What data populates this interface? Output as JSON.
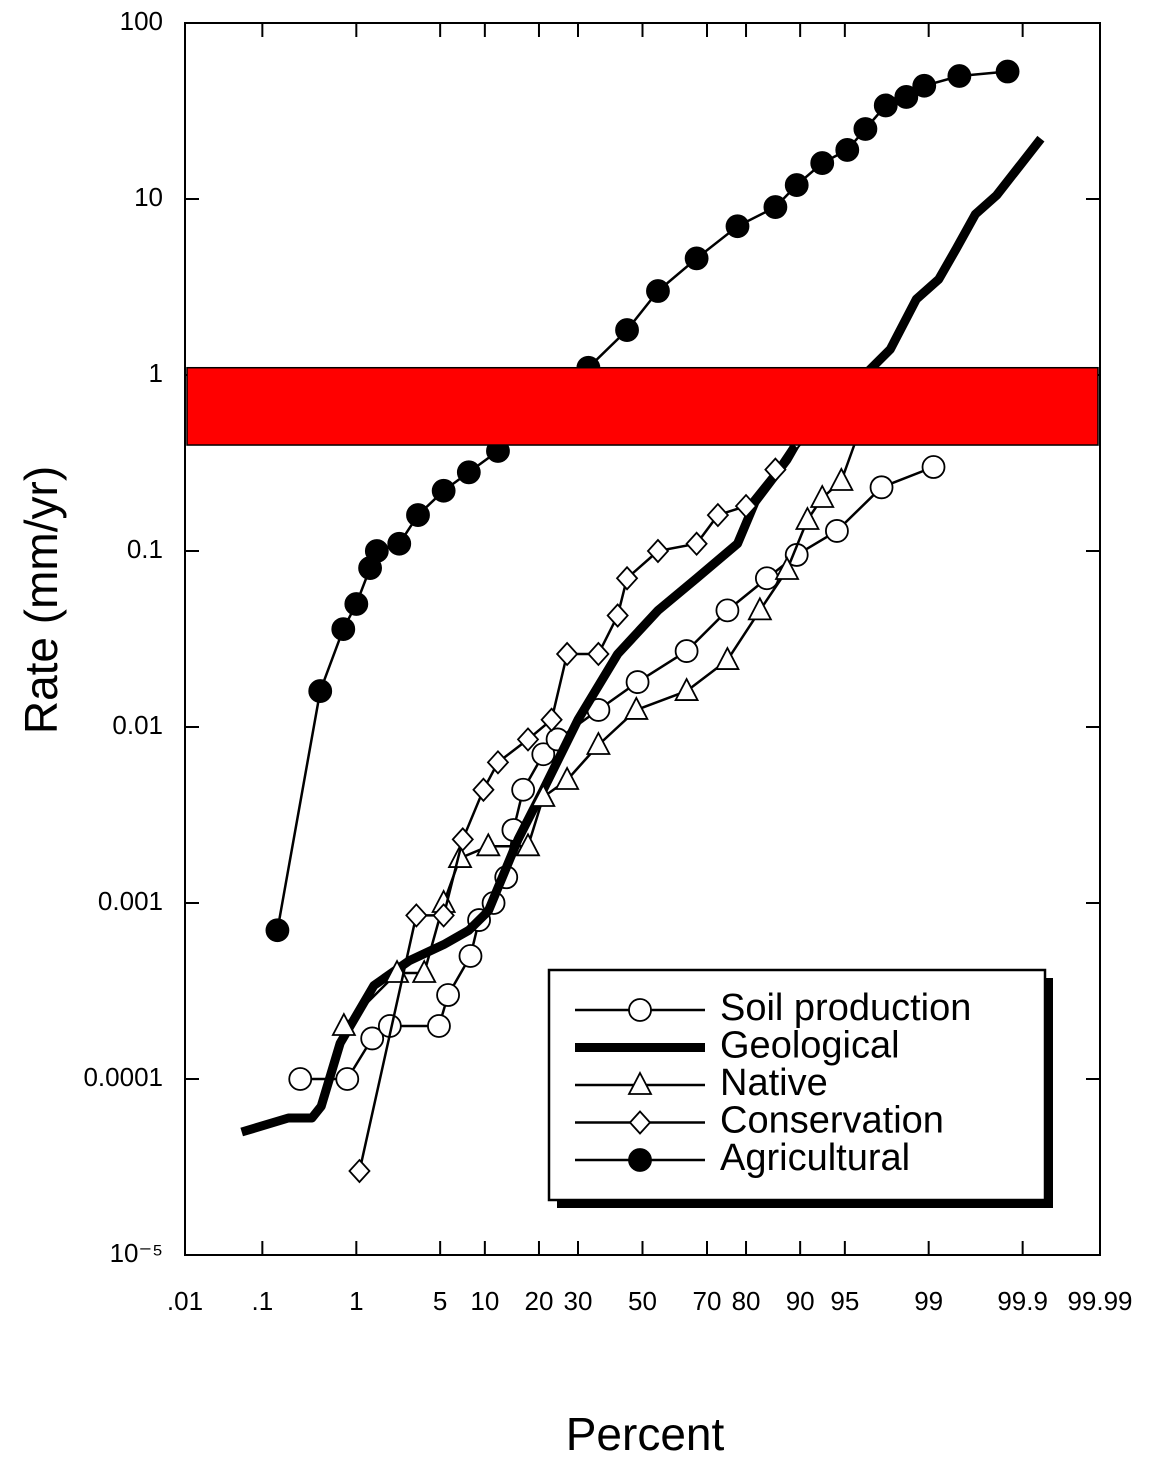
{
  "chart_data": {
    "type": "probability-line",
    "x_label": "Percent",
    "y_label": "Rate (mm/yr)",
    "y_log": true,
    "x_scale": "probability",
    "grid": false,
    "legend": "lower right",
    "xlim": [
      0.01,
      99.99
    ],
    "ylim": [
      1e-05,
      100
    ],
    "xticks": [
      {
        "value": 0.01,
        "label": ".01"
      },
      {
        "value": 0.1,
        "label": ".1"
      },
      1,
      5,
      10,
      20,
      30,
      50,
      70,
      80,
      90,
      95,
      99,
      99.9,
      99.99
    ],
    "yticks": [
      {
        "value": 1e-05,
        "label": "10⁻⁵"
      },
      0.0001,
      0.001,
      0.01,
      0.1,
      1,
      10,
      100
    ],
    "band": {
      "ymin": 0.4,
      "ymax": 1.1,
      "color": "#ff0000"
    },
    "series": [
      {
        "name": "Soil production",
        "color": "#000000",
        "marker": "circle-open",
        "line_width": 2.5,
        "x": [
          0.27,
          0.82,
          1.4,
          2.0,
          4.9,
          5.7,
          8.1,
          9.2,
          11.3,
          13.4,
          14.7,
          16.6,
          21,
          24.5,
          36,
          48.4,
          64,
          75.5,
          84.4,
          89.5,
          94.3,
          97.4,
          99.1
        ],
        "values": [
          0.0001,
          0.0001,
          0.00017,
          0.0002,
          0.0002,
          0.0003,
          0.0005,
          0.0008,
          0.001,
          0.0014,
          0.0026,
          0.0044,
          0.007,
          0.0085,
          0.0125,
          0.018,
          0.027,
          0.046,
          0.07,
          0.095,
          0.13,
          0.23,
          0.3
        ]
      },
      {
        "name": "Geological",
        "color": "#000000",
        "marker": "none",
        "line_width": 9,
        "x": [
          0.056,
          0.2,
          0.36,
          0.45,
          0.7,
          1.45,
          2.9,
          5.3,
          7.9,
          10.5,
          15.6,
          21,
          30,
          42,
          55,
          67,
          78,
          82,
          88,
          92,
          95.9,
          97.8,
          98.7,
          99.2,
          99.46,
          99.66,
          99.8,
          99.94
        ],
        "values": [
          5e-05,
          6e-05,
          6e-05,
          7e-05,
          0.00016,
          0.00034,
          0.00047,
          0.00058,
          0.0007,
          0.0009,
          0.0023,
          0.0044,
          0.011,
          0.026,
          0.046,
          0.07,
          0.11,
          0.19,
          0.33,
          0.63,
          0.9,
          1.4,
          2.7,
          3.5,
          5.2,
          8.2,
          10.5,
          22
        ]
      },
      {
        "name": "Native",
        "color": "#000000",
        "marker": "triangle-open",
        "line_width": 2.5,
        "x": [
          0.76,
          2.3,
          3.8,
          5.3,
          6.9,
          10.5,
          17.6,
          21,
          27,
          36,
          48,
          64,
          75.5,
          83,
          88,
          91,
          92.8,
          94.7,
          96.5
        ],
        "values": [
          0.0002,
          0.0004,
          0.0004,
          0.001,
          0.0018,
          0.0021,
          0.0021,
          0.004,
          0.005,
          0.0079,
          0.0125,
          0.016,
          0.024,
          0.046,
          0.078,
          0.15,
          0.2,
          0.25,
          0.6
        ]
      },
      {
        "name": "Conservation",
        "color": "#000000",
        "marker": "diamond-open",
        "line_width": 2.5,
        "x": [
          1.07,
          3.3,
          5.3,
          7.2,
          9.8,
          12,
          17.6,
          23,
          27,
          36,
          42,
          45,
          55,
          67,
          73,
          80,
          86,
          89.5
        ],
        "values": [
          3e-05,
          0.00085,
          0.00085,
          0.0023,
          0.0044,
          0.0063,
          0.0085,
          0.011,
          0.026,
          0.026,
          0.043,
          0.07,
          0.1,
          0.11,
          0.16,
          0.18,
          0.29,
          0.44
        ]
      },
      {
        "name": "Agricultural",
        "color": "#000000",
        "marker": "circle-filled",
        "line_width": 2.5,
        "x": [
          0.15,
          0.44,
          0.75,
          1.0,
          1.34,
          1.54,
          2.4,
          3.4,
          5.3,
          7.9,
          12,
          20,
          33,
          45,
          55,
          67,
          78,
          86,
          89.5,
          92.8,
          95.2,
          96.5,
          97.6,
          98.4,
          98.9,
          99.5,
          99.85
        ],
        "values": [
          0.0007,
          0.016,
          0.036,
          0.05,
          0.08,
          0.1,
          0.11,
          0.16,
          0.22,
          0.28,
          0.37,
          0.55,
          1.1,
          1.8,
          3.0,
          4.6,
          7.0,
          9,
          12,
          16,
          19,
          25,
          34,
          38,
          44,
          50,
          53
        ]
      }
    ]
  }
}
